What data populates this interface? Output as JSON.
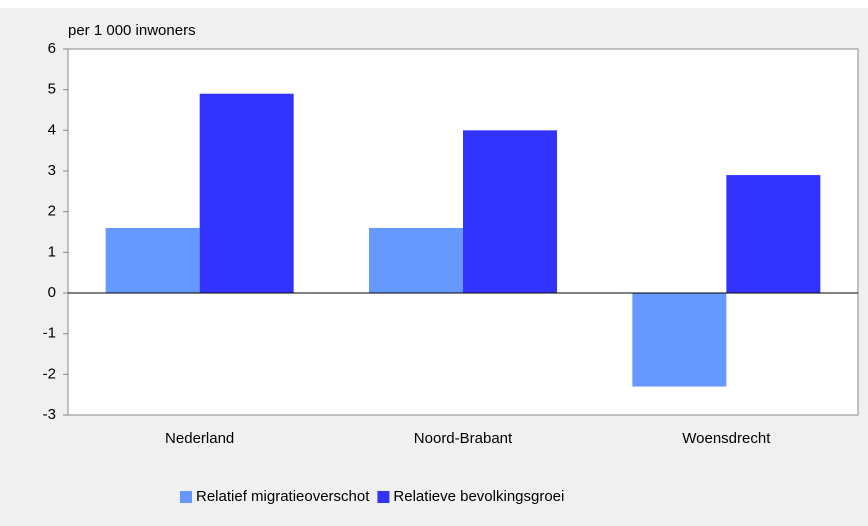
{
  "chart_data": {
    "type": "bar",
    "y_axis_label": "per 1 000 inwoners",
    "categories": [
      "Nederland",
      "Noord-Brabant",
      "Woensdrecht"
    ],
    "series": [
      {
        "name": "Relatief migratieoverschot",
        "color": "#6699ff",
        "values": [
          1.6,
          1.6,
          -2.3
        ]
      },
      {
        "name": "Relatieve bevolkingsgroei",
        "color": "#3333ff",
        "values": [
          4.9,
          4.0,
          2.9
        ]
      }
    ],
    "ylim": [
      -3,
      6
    ],
    "yticks": [
      -3,
      -2,
      -1,
      0,
      1,
      2,
      3,
      4,
      5,
      6
    ],
    "grid": false,
    "legend": "bottom"
  }
}
